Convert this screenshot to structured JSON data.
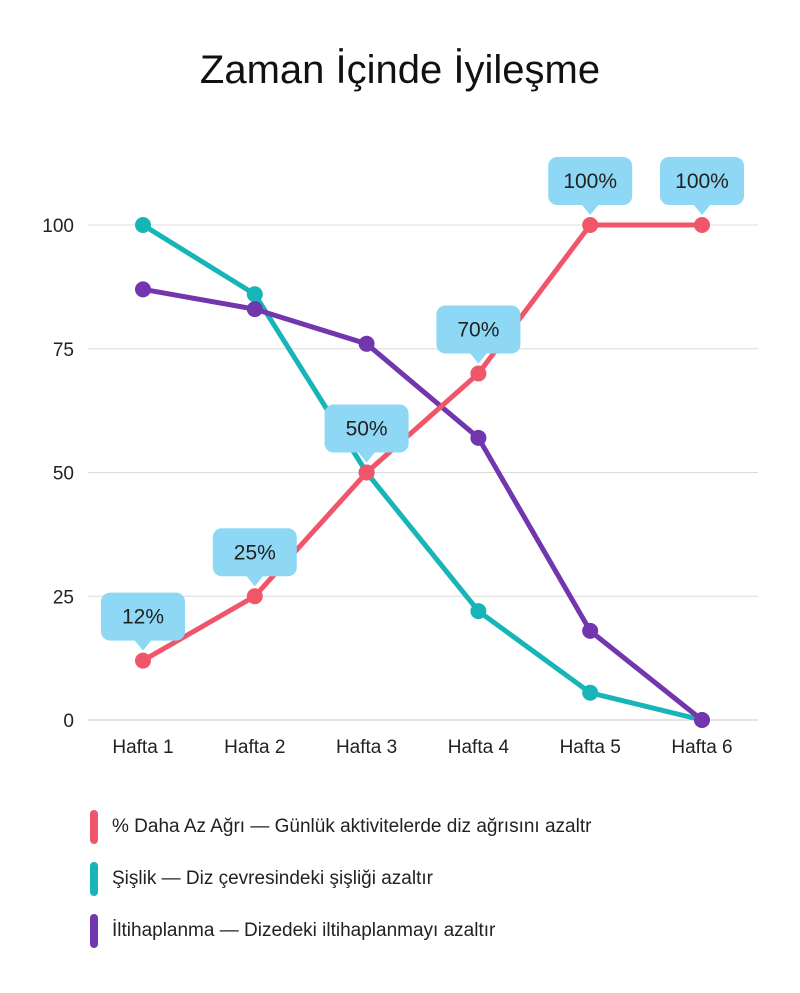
{
  "chart_data": {
    "type": "line",
    "title": "Zaman İçinde İyileşme",
    "categories": [
      "Hafta 1",
      "Hafta 2",
      "Hafta 3",
      "Hafta 4",
      "Hafta 5",
      "Hafta 6"
    ],
    "ylim": [
      0,
      100
    ],
    "yticks": [
      0,
      25,
      50,
      75,
      100
    ],
    "grid": true,
    "series": [
      {
        "name": "% Daha Az Ağrı — Günlük aktivitelerde diz ağrısını azaltr",
        "color": "#F0566A",
        "values": [
          12,
          25,
          50,
          70,
          100,
          100
        ],
        "data_labels": [
          "12%",
          "25%",
          "50%",
          "70%",
          "100%",
          "100%"
        ]
      },
      {
        "name": "Şişlik — Diz çevresindeki şişliği azaltır",
        "color": "#17B4B8",
        "values": [
          100,
          86,
          50,
          22,
          5.5,
          0
        ]
      },
      {
        "name": "İltihaplanma — Dizedeki iltihaplanmayı azaltır",
        "color": "#7236AE",
        "values": [
          87,
          83,
          76,
          57,
          18,
          0
        ]
      }
    ],
    "callout_color": "#8ED8F5",
    "legend_position": "bottom"
  }
}
